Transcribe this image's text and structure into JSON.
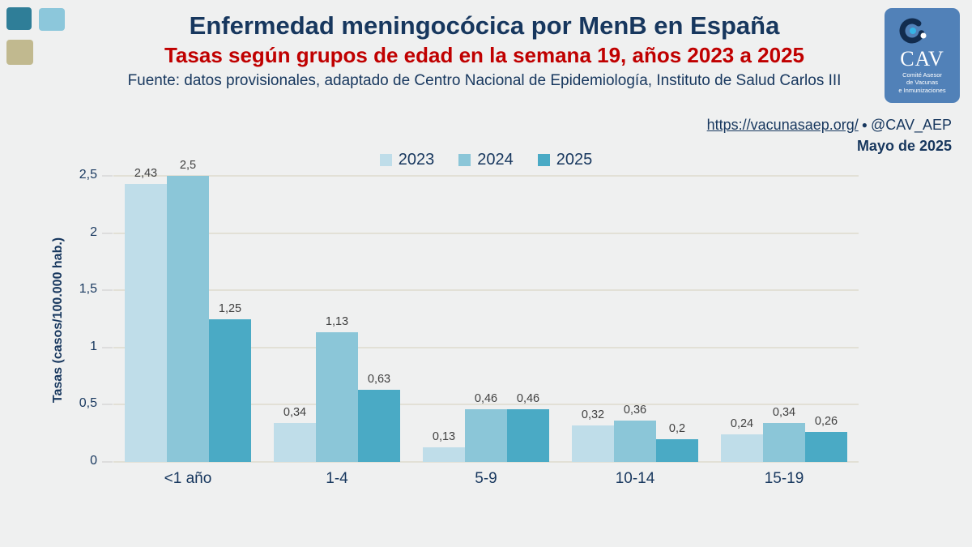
{
  "header": {
    "title": "Enfermedad meningocócica por MenB en España",
    "subtitle": "Tasas según grupos de edad en la semana 19, años 2023 a 2025",
    "source": "Fuente: datos provisionales, adaptado de Centro Nacional de Epidemiología, Instituto de Salud Carlos III",
    "square_colors": {
      "teal": "#2f7e98",
      "light_blue": "#8cc7db",
      "tan": "#c1b98f"
    }
  },
  "meta": {
    "url": "https://vacunasaep.org/",
    "separator": "●",
    "handle": "@CAV_AEP",
    "date": "Mayo de 2025"
  },
  "logo": {
    "acronym": "CAV",
    "sub1": "Comité Asesor",
    "sub2": "de Vacunas",
    "sub3": "e Inmunizaciones",
    "bg_color": "#5181b8"
  },
  "colors": {
    "background": "#eff0f0",
    "title_navy": "#17375e",
    "subtitle_red": "#c00000",
    "gridline": "#e2e0d6",
    "value_label": "#3f3f3f"
  },
  "chart_data": {
    "type": "bar",
    "title": "Tasas de enfermedad meningocócica por MenB según grupos de edad, semana 19, años 2023 a 2025",
    "categories": [
      "<1 año",
      "1-4",
      "5-9",
      "10-14",
      "15-19"
    ],
    "series": [
      {
        "name": "2023",
        "color": "#bfdde9",
        "values": [
          2.43,
          0.34,
          0.13,
          0.32,
          0.24
        ],
        "labels": [
          "2,43",
          "0,34",
          "0,13",
          "0,32",
          "0,24"
        ]
      },
      {
        "name": "2024",
        "color": "#8bc6d8",
        "values": [
          2.5,
          1.13,
          0.46,
          0.36,
          0.34
        ],
        "labels": [
          "2,5",
          "1,13",
          "0,46",
          "0,36",
          "0,34"
        ]
      },
      {
        "name": "2025",
        "color": "#4aaac5",
        "values": [
          1.25,
          0.63,
          0.46,
          0.2,
          0.26
        ],
        "labels": [
          "1,25",
          "0,63",
          "0,46",
          "0,2",
          "0,26"
        ]
      }
    ],
    "xlabel": "",
    "ylabel": "Tasas (casos/100.000 hab.)",
    "ylim": [
      0,
      2.5
    ],
    "yticks": [
      0,
      0.5,
      1,
      1.5,
      2,
      2.5
    ],
    "ytick_labels": [
      "0",
      "0,5",
      "1",
      "1,5",
      "2",
      "2,5"
    ],
    "legend_position": "top-center",
    "grid": true
  }
}
